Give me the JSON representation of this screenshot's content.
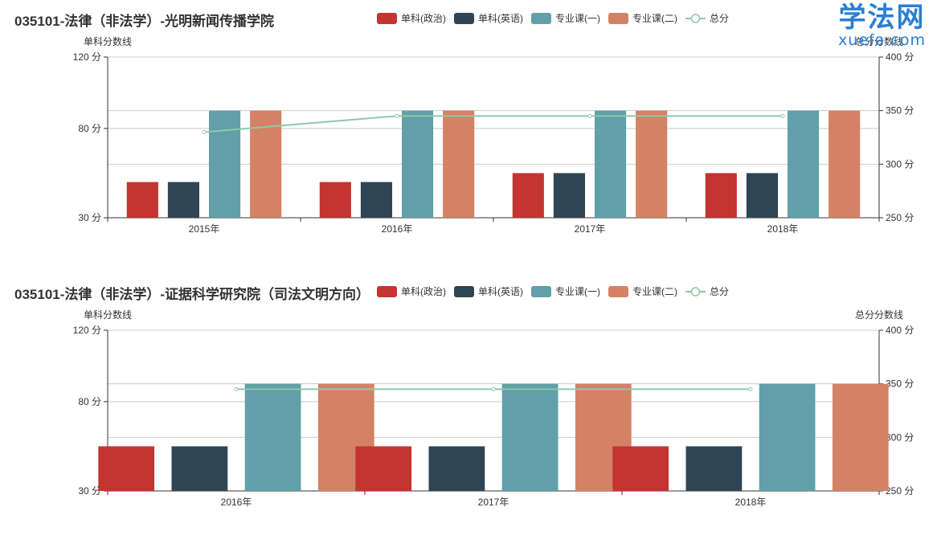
{
  "watermark": {
    "cn": "学法网",
    "en": "xuefa.com"
  },
  "colors": {
    "politics": "#c23531",
    "english": "#2f4554",
    "course1": "#61a0a8",
    "course2": "#d48265",
    "total": "#91c7ae"
  },
  "chart_data": [
    {
      "type": "bar",
      "title": "035101-法律（非法学）-光明新闻传播学院",
      "ylabel_left": "单科分数线",
      "ylabel_right": "总分分数线",
      "categories": [
        "2015年",
        "2016年",
        "2017年",
        "2018年"
      ],
      "ylim_left": [
        30,
        120
      ],
      "ylim_right": [
        250,
        400
      ],
      "left_ticks": [
        "30 分",
        "80 分",
        "120 分"
      ],
      "right_ticks": [
        "250 分",
        "300 分",
        "350 分",
        "400 分"
      ],
      "series": [
        {
          "name": "单科(政治)",
          "type": "bar",
          "axis": "left",
          "values": [
            50,
            50,
            55,
            55
          ]
        },
        {
          "name": "单科(英语)",
          "type": "bar",
          "axis": "left",
          "values": [
            50,
            50,
            55,
            55
          ]
        },
        {
          "name": "专业课(一)",
          "type": "bar",
          "axis": "left",
          "values": [
            90,
            90,
            90,
            90
          ]
        },
        {
          "name": "专业课(二)",
          "type": "bar",
          "axis": "left",
          "values": [
            90,
            90,
            90,
            90
          ]
        },
        {
          "name": "总分",
          "type": "line",
          "axis": "right",
          "values": [
            330,
            345,
            345,
            345
          ]
        }
      ],
      "legend": "top-right",
      "grid": true
    },
    {
      "type": "bar",
      "title": "035101-法律（非法学）-证据科学研究院（司法文明方向）",
      "ylabel_left": "单科分数线",
      "ylabel_right": "总分分数线",
      "categories": [
        "2016年",
        "2017年",
        "2018年"
      ],
      "ylim_left": [
        30,
        120
      ],
      "ylim_right": [
        250,
        400
      ],
      "left_ticks": [
        "30 分",
        "80 分",
        "120 分"
      ],
      "right_ticks": [
        "250 分",
        "300 分",
        "350 分",
        "400 分"
      ],
      "series": [
        {
          "name": "单科(政治)",
          "type": "bar",
          "axis": "left",
          "values": [
            55,
            55,
            55
          ]
        },
        {
          "name": "单科(英语)",
          "type": "bar",
          "axis": "left",
          "values": [
            55,
            55,
            55
          ]
        },
        {
          "name": "专业课(一)",
          "type": "bar",
          "axis": "left",
          "values": [
            90,
            90,
            90
          ]
        },
        {
          "name": "专业课(二)",
          "type": "bar",
          "axis": "left",
          "values": [
            90,
            90,
            90
          ]
        },
        {
          "name": "总分",
          "type": "line",
          "axis": "right",
          "values": [
            345,
            345,
            345
          ]
        }
      ],
      "legend": "top-right",
      "grid": true
    }
  ]
}
